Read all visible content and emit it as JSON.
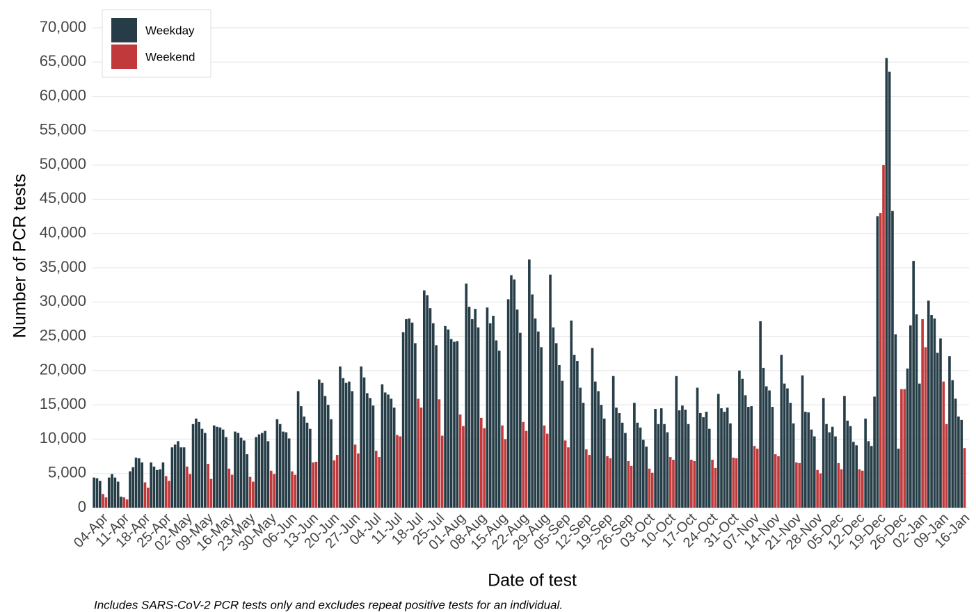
{
  "chart_data": {
    "type": "bar",
    "y_label": "Number of PCR tests",
    "x_label": "Date of test",
    "footnote": "Includes SARS-CoV-2 PCR tests only and excludes repeat positive tests for an individual.",
    "legend": "top-left",
    "grid": true,
    "ylim": [
      0,
      70000
    ],
    "yticks": [
      {
        "value": 0,
        "label": "0"
      },
      {
        "value": 5000,
        "label": "5,000"
      },
      {
        "value": 10000,
        "label": "10,000"
      },
      {
        "value": 15000,
        "label": "15,000"
      },
      {
        "value": 20000,
        "label": "20,000"
      },
      {
        "value": 25000,
        "label": "25,000"
      },
      {
        "value": 30000,
        "label": "30,000"
      },
      {
        "value": 35000,
        "label": "35,000"
      },
      {
        "value": 40000,
        "label": "40,000"
      },
      {
        "value": 45000,
        "label": "45,000"
      },
      {
        "value": 50000,
        "label": "50,000"
      },
      {
        "value": 55000,
        "label": "55,000"
      },
      {
        "value": 60000,
        "label": "60,000"
      },
      {
        "value": 65000,
        "label": "65,000"
      },
      {
        "value": 70000,
        "label": "70,000"
      }
    ],
    "categories": [
      null,
      null,
      null,
      null,
      "04-Apr",
      null,
      null,
      null,
      null,
      null,
      null,
      "11-Apr",
      null,
      null,
      null,
      null,
      null,
      null,
      "18-Apr",
      null,
      null,
      null,
      null,
      null,
      null,
      "25-Apr",
      null,
      null,
      null,
      null,
      null,
      null,
      "02-May",
      null,
      null,
      null,
      null,
      null,
      null,
      "09-May",
      null,
      null,
      null,
      null,
      null,
      null,
      "16-May",
      null,
      null,
      null,
      null,
      null,
      null,
      "23-May",
      null,
      null,
      null,
      null,
      null,
      null,
      "30-May",
      null,
      null,
      null,
      null,
      null,
      null,
      "06-Jun",
      null,
      null,
      null,
      null,
      null,
      null,
      "13-Jun",
      null,
      null,
      null,
      null,
      null,
      null,
      "20-Jun",
      null,
      null,
      null,
      null,
      null,
      null,
      "27-Jun",
      null,
      null,
      null,
      null,
      null,
      null,
      "04-Jul",
      null,
      null,
      null,
      null,
      null,
      null,
      "11-Jul",
      null,
      null,
      null,
      null,
      null,
      null,
      "18-Jul",
      null,
      null,
      null,
      null,
      null,
      null,
      "25-Jul",
      null,
      null,
      null,
      null,
      null,
      null,
      "01-Aug",
      null,
      null,
      null,
      null,
      null,
      null,
      "08-Aug",
      null,
      null,
      null,
      null,
      null,
      null,
      "15-Aug",
      null,
      null,
      null,
      null,
      null,
      null,
      "22-Aug",
      null,
      null,
      null,
      null,
      null,
      null,
      "29-Aug",
      null,
      null,
      null,
      null,
      null,
      null,
      "05-Sep",
      null,
      null,
      null,
      null,
      null,
      null,
      "12-Sep",
      null,
      null,
      null,
      null,
      null,
      null,
      "19-Sep",
      null,
      null,
      null,
      null,
      null,
      null,
      "26-Sep",
      null,
      null,
      null,
      null,
      null,
      null,
      "03-Oct",
      null,
      null,
      null,
      null,
      null,
      null,
      "10-Oct",
      null,
      null,
      null,
      null,
      null,
      null,
      "17-Oct",
      null,
      null,
      null,
      null,
      null,
      null,
      "24-Oct",
      null,
      null,
      null,
      null,
      null,
      null,
      "31-Oct",
      null,
      null,
      null,
      null,
      null,
      null,
      "07-Nov",
      null,
      null,
      null,
      null,
      null,
      null,
      "14-Nov",
      null,
      null,
      null,
      null,
      null,
      null,
      "21-Nov",
      null,
      null,
      null,
      null,
      null,
      null,
      "28-Nov",
      null,
      null,
      null,
      null,
      null,
      null,
      "05-Dec",
      null,
      null,
      null,
      null,
      null,
      null,
      "12-Dec",
      null,
      null,
      null,
      null,
      null,
      null,
      "19-Dec",
      null,
      null,
      null,
      null,
      null,
      null,
      "26-Dec",
      null,
      null,
      null,
      null,
      null,
      null,
      "02-Jan",
      null,
      null,
      null,
      null,
      null,
      null,
      "09-Jan",
      null,
      null,
      null,
      null,
      null,
      null,
      "16-Jan"
    ],
    "series": [
      {
        "name": "Weekday",
        "color": "#263d47",
        "values": [
          4400,
          4300,
          3900,
          null,
          null,
          4400,
          4900,
          4400,
          3800,
          1600,
          null,
          null,
          5300,
          5900,
          7300,
          7200,
          6600,
          null,
          null,
          6600,
          6000,
          5500,
          5600,
          6600,
          null,
          null,
          8800,
          9200,
          9700,
          8800,
          8800,
          null,
          null,
          12200,
          13000,
          12500,
          11500,
          10900,
          null,
          null,
          12000,
          11800,
          11700,
          11400,
          10300,
          null,
          null,
          11100,
          10900,
          10200,
          9800,
          7800,
          null,
          null,
          10300,
          10700,
          10900,
          11200,
          9700,
          null,
          null,
          12900,
          12200,
          11100,
          11000,
          10100,
          null,
          null,
          17000,
          14800,
          13300,
          12400,
          11500,
          null,
          null,
          18700,
          18200,
          16300,
          15000,
          12900,
          null,
          null,
          20600,
          18900,
          18200,
          18400,
          17000,
          null,
          null,
          20600,
          19000,
          16700,
          16000,
          14900,
          null,
          null,
          18000,
          16800,
          16500,
          15900,
          14600,
          null,
          null,
          25600,
          27500,
          27600,
          27000,
          24000,
          null,
          null,
          31700,
          31000,
          29100,
          26900,
          23700,
          null,
          null,
          26500,
          26000,
          24600,
          24200,
          24300,
          null,
          null,
          32700,
          29300,
          27500,
          29000,
          26300,
          null,
          null,
          29200,
          26900,
          28000,
          24400,
          22900,
          null,
          null,
          30400,
          33900,
          33300,
          28900,
          25500,
          null,
          null,
          36200,
          31100,
          27600,
          25700,
          23400,
          null,
          null,
          34000,
          26300,
          24000,
          20800,
          18500,
          null,
          null,
          27300,
          22300,
          21400,
          17500,
          15300,
          null,
          null,
          23300,
          18400,
          17000,
          15000,
          13000,
          null,
          null,
          19200,
          14600,
          13800,
          12400,
          10900,
          null,
          null,
          15300,
          12400,
          11700,
          9900,
          8900,
          null,
          null,
          14400,
          12200,
          14500,
          12200,
          11000,
          null,
          null,
          19200,
          14200,
          14900,
          14300,
          12200,
          null,
          null,
          17500,
          13800,
          13200,
          14000,
          11500,
          null,
          null,
          16600,
          14500,
          14000,
          14600,
          12300,
          null,
          null,
          20000,
          18800,
          16400,
          14700,
          14800,
          null,
          null,
          27200,
          20400,
          17700,
          17100,
          14700,
          null,
          null,
          22300,
          18100,
          17400,
          15300,
          12300,
          null,
          null,
          19300,
          14000,
          13900,
          11400,
          10400,
          null,
          null,
          16000,
          12200,
          11000,
          11800,
          10400,
          null,
          null,
          16300,
          12700,
          11900,
          9600,
          9100,
          null,
          null,
          13000,
          9700,
          9000,
          16200,
          42500,
          null,
          null,
          65600,
          63600,
          43300,
          25300,
          8600,
          null,
          null,
          20300,
          26600,
          36000,
          28200,
          18100,
          null,
          null,
          30200,
          28100,
          27600,
          22600,
          24700,
          null,
          null,
          22100,
          18600,
          15900,
          13300,
          12800,
          null,
          null
        ]
      },
      {
        "name": "Weekend",
        "color": "#c1393a",
        "values": [
          null,
          null,
          null,
          2000,
          1500,
          null,
          null,
          null,
          null,
          null,
          1500,
          1200,
          null,
          null,
          null,
          null,
          null,
          3700,
          2900,
          null,
          null,
          null,
          null,
          null,
          4600,
          3900,
          null,
          null,
          null,
          null,
          null,
          6000,
          4900,
          null,
          null,
          null,
          null,
          null,
          6400,
          4200,
          null,
          null,
          null,
          null,
          null,
          5700,
          4800,
          null,
          null,
          null,
          null,
          null,
          4500,
          3800,
          null,
          null,
          null,
          null,
          null,
          5400,
          4900,
          null,
          null,
          null,
          null,
          null,
          5300,
          4800,
          null,
          null,
          null,
          null,
          null,
          6600,
          6700,
          null,
          null,
          null,
          null,
          null,
          6900,
          7700,
          null,
          null,
          null,
          null,
          null,
          9200,
          7900,
          null,
          null,
          null,
          null,
          null,
          8300,
          7400,
          null,
          null,
          null,
          null,
          null,
          10600,
          10400,
          null,
          null,
          null,
          null,
          null,
          15900,
          14600,
          null,
          null,
          null,
          null,
          null,
          15800,
          10500,
          null,
          null,
          null,
          null,
          null,
          13600,
          11900,
          null,
          null,
          null,
          null,
          null,
          13100,
          11600,
          null,
          null,
          null,
          null,
          null,
          12000,
          10000,
          null,
          null,
          null,
          null,
          null,
          12500,
          11200,
          null,
          null,
          null,
          null,
          null,
          12000,
          10800,
          null,
          null,
          null,
          null,
          null,
          9800,
          8800,
          null,
          null,
          null,
          null,
          null,
          8500,
          7700,
          null,
          null,
          null,
          null,
          null,
          7500,
          7200,
          null,
          null,
          null,
          null,
          null,
          6800,
          6100,
          null,
          null,
          null,
          null,
          null,
          5700,
          5100,
          null,
          null,
          null,
          null,
          null,
          7400,
          7000,
          null,
          null,
          null,
          null,
          null,
          7000,
          6800,
          null,
          null,
          null,
          null,
          null,
          7000,
          5800,
          null,
          null,
          null,
          null,
          null,
          7300,
          7200,
          null,
          null,
          null,
          null,
          null,
          9000,
          8600,
          null,
          null,
          null,
          null,
          null,
          7800,
          7500,
          null,
          null,
          null,
          null,
          null,
          6600,
          6500,
          null,
          null,
          null,
          null,
          null,
          5500,
          5000,
          null,
          null,
          null,
          null,
          null,
          6500,
          5600,
          null,
          null,
          null,
          null,
          null,
          5600,
          5400,
          null,
          null,
          null,
          null,
          null,
          43000,
          50000,
          null,
          null,
          null,
          null,
          null,
          17300,
          17300,
          null,
          null,
          null,
          null,
          null,
          27500,
          23400,
          null,
          null,
          null,
          null,
          null,
          18400,
          12200,
          null,
          null,
          null,
          null,
          null,
          8700,
          null
        ]
      }
    ]
  }
}
